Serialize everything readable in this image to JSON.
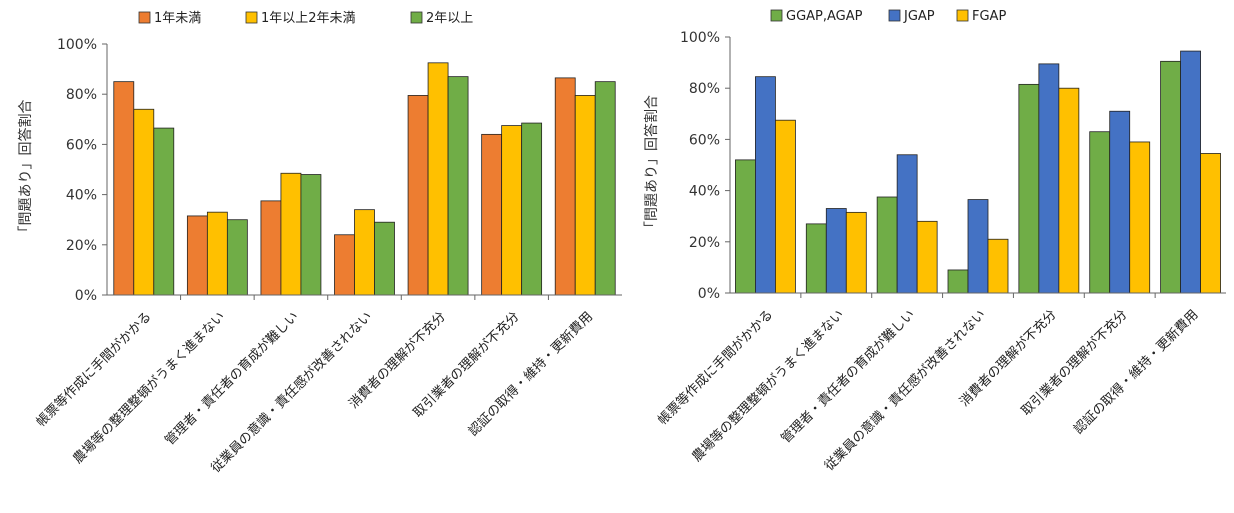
{
  "chart_data": [
    {
      "type": "bar",
      "title": "",
      "xlabel": "",
      "ylabel": "「問題あり」回答割合",
      "ylim": [
        0,
        100
      ],
      "ytick_labels": [
        "0%",
        "20%",
        "40%",
        "60%",
        "80%",
        "100%"
      ],
      "grid": false,
      "legend_position": "top",
      "categories": [
        "帳票等作成に手間がかかる",
        "農場等の整理整頓がうまく進まない",
        "管理者・責任者の育成が難しい",
        "従業員の意識・責任感が改善されない",
        "消費者の理解が不充分",
        "取引業者の理解が不充分",
        "認証の取得・維持・更新費用"
      ],
      "series": [
        {
          "name": "1年未満",
          "color": "#ed7d31",
          "values": [
            85,
            31.5,
            37.5,
            24,
            79.5,
            64,
            86.5
          ]
        },
        {
          "name": "1年以上2年未満",
          "color": "#ffc000",
          "values": [
            74,
            33,
            48.5,
            34,
            92.5,
            67.5,
            79.5
          ]
        },
        {
          "name": "2年以上",
          "color": "#70ad47",
          "values": [
            66.5,
            30,
            48,
            29,
            87,
            68.5,
            85
          ]
        }
      ]
    },
    {
      "type": "bar",
      "title": "",
      "xlabel": "",
      "ylabel": "「問題あり」回答割合",
      "ylim": [
        0,
        100
      ],
      "ytick_labels": [
        "0%",
        "20%",
        "40%",
        "60%",
        "80%",
        "100%"
      ],
      "grid": false,
      "legend_position": "top",
      "categories": [
        "帳票等作成に手間がかかる",
        "農場等の整理整頓がうまく進まない",
        "管理者・責任者の育成が難しい",
        "従業員の意識・責任感が改善されない",
        "消費者の理解が不充分",
        "取引業者の理解が不充分",
        "認証の取得・維持・更新費用"
      ],
      "series": [
        {
          "name": "GGAP,AGAP",
          "color": "#70ad47",
          "values": [
            52,
            27,
            37.5,
            9,
            81.5,
            63,
            90.5
          ]
        },
        {
          "name": "JGAP",
          "color": "#4472c4",
          "values": [
            84.5,
            33,
            54,
            36.5,
            89.5,
            71,
            94.5
          ]
        },
        {
          "name": "FGAP",
          "color": "#ffc000",
          "values": [
            67.5,
            31.5,
            28,
            21,
            80,
            59,
            54.5
          ]
        }
      ]
    }
  ]
}
